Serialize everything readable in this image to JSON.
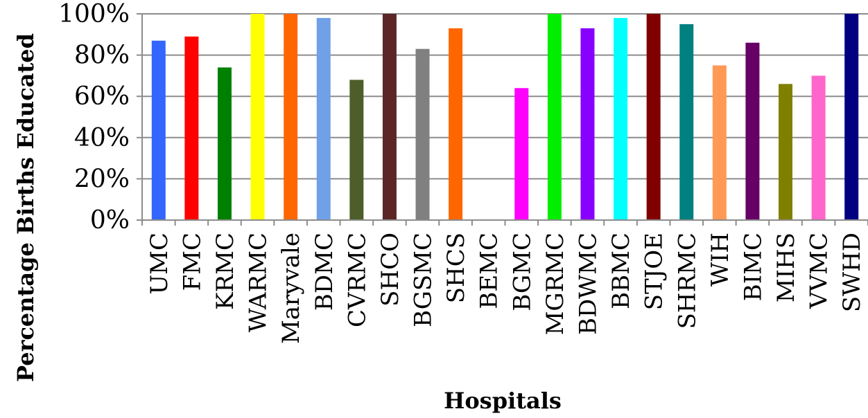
{
  "chart_data": {
    "type": "bar",
    "title": "",
    "xlabel": "Hospitals",
    "ylabel": "Percentage Births Educated",
    "ylim": [
      0,
      100
    ],
    "yticks": [
      "0%",
      "20%",
      "40%",
      "60%",
      "80%",
      "100%"
    ],
    "grid": true,
    "legend": "none",
    "categories": [
      "UMC",
      "FMC",
      "KRMC",
      "WARMC",
      "Maryvale",
      "BDMC",
      "CVRMC",
      "SHCO",
      "BGSMC",
      "SHCS",
      "BEMC",
      "BGMC",
      "MGRMC",
      "BDWMC",
      "BBMC",
      "STJOE",
      "SHRMC",
      "WIH",
      "BIMC",
      "MIHS",
      "VVMC",
      "SWHD"
    ],
    "values": [
      87,
      89,
      74,
      100,
      100,
      98,
      68,
      100,
      83,
      93,
      0,
      64,
      100,
      93,
      98,
      100,
      95,
      75,
      86,
      66,
      70,
      100
    ],
    "colors": [
      "#3366ff",
      "#ff0000",
      "#008000",
      "#ffff00",
      "#ff6600",
      "#6fa0e8",
      "#4d5e2a",
      "#5c2626",
      "#808080",
      "#ff6600",
      "#ffffff",
      "#ff00ff",
      "#00ee00",
      "#8800ff",
      "#00ffff",
      "#800000",
      "#008080",
      "#ff9955",
      "#660066",
      "#808000",
      "#ff66cc",
      "#000080"
    ]
  }
}
